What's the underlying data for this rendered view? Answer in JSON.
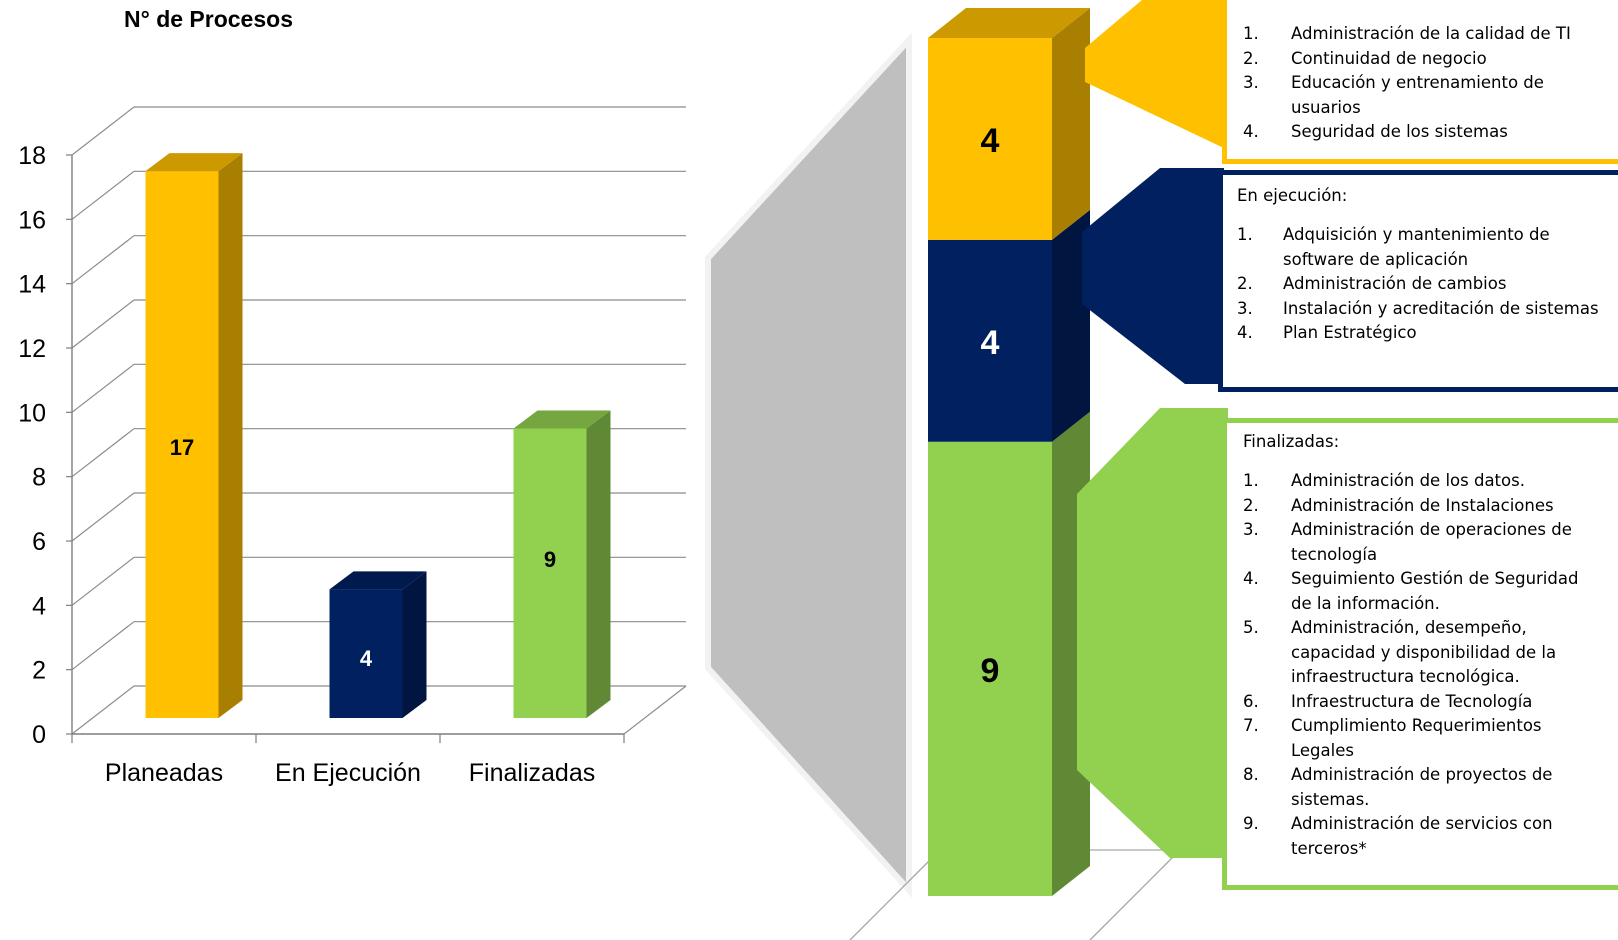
{
  "chart_data": [
    {
      "type": "bar",
      "title": "N° de Procesos",
      "categories": [
        "Planeadas",
        "En Ejecución",
        "Finalizadas"
      ],
      "values": [
        17,
        4,
        9
      ],
      "data_labels": [
        "17",
        "4",
        "9"
      ],
      "colors": [
        "#ffc000",
        "#002060",
        "#92d050"
      ],
      "yticks": [
        "0",
        "2",
        "4",
        "6",
        "8",
        "10",
        "12",
        "14",
        "16",
        "18"
      ],
      "ylim": [
        0,
        18
      ],
      "grid": true,
      "style": "3d-column"
    },
    {
      "type": "bar",
      "stacked": true,
      "categories": [
        ""
      ],
      "series": [
        {
          "value": 4,
          "label": "4",
          "color": "#ffc000"
        },
        {
          "value": 4,
          "label": "4",
          "color": "#002060"
        },
        {
          "value": 9,
          "label": "9",
          "color": "#92d050"
        }
      ],
      "style": "3d-stacked-column"
    }
  ],
  "callouts": {
    "planned": {
      "border_color": "#ffc000",
      "items": [
        {
          "n": "1.",
          "text": "Administración de la calidad de TI"
        },
        {
          "n": "2.",
          "text": "Continuidad de negocio"
        },
        {
          "n": "3.",
          "text": "Educación y entrenamiento de usuarios"
        },
        {
          "n": "4.",
          "text": "Seguridad de los sistemas"
        }
      ]
    },
    "exec": {
      "border_color": "#002060",
      "heading": "En ejecución:",
      "items": [
        {
          "n": "1.",
          "text": "Adquisición y mantenimiento de software de aplicación"
        },
        {
          "n": "2.",
          "text": "Administración de cambios"
        },
        {
          "n": "3.",
          "text": "Instalación y acreditación de sistemas"
        },
        {
          "n": "4.",
          "text": "Plan Estratégico"
        }
      ]
    },
    "final": {
      "border_color": "#92d050",
      "heading": "Finalizadas:",
      "items": [
        {
          "n": "1.",
          "text": "Administración de los datos."
        },
        {
          "n": "2.",
          "text": "Administración de Instalaciones"
        },
        {
          "n": "3.",
          "text": "Administración de operaciones de tecnología"
        },
        {
          "n": "4.",
          "text": "Seguimiento Gestión de Seguridad de la información."
        },
        {
          "n": "5.",
          "text": " Administración, desempeño, capacidad y disponibilidad de la infraestructura tecnológica."
        },
        {
          "n": "6.",
          "text": "Infraestructura de Tecnología"
        },
        {
          "n": "7.",
          "text": "Cumplimiento Requerimientos Legales"
        },
        {
          "n": "8.",
          "text": "Administración de proyectos de sistemas."
        },
        {
          "n": "9.",
          "text": "Administración de servicios con terceros*"
        }
      ]
    }
  }
}
